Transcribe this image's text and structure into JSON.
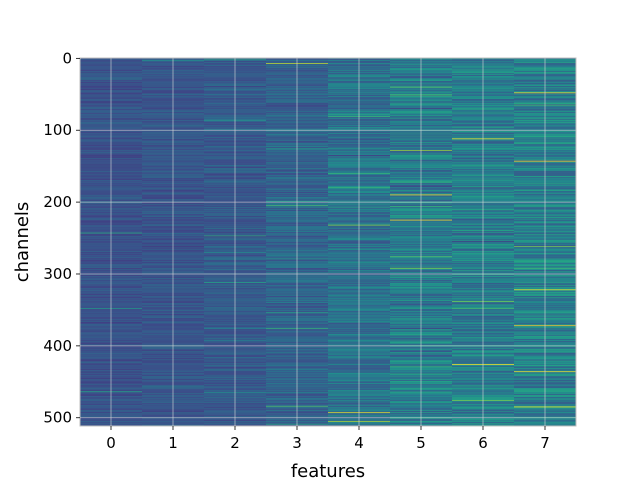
{
  "chart_data": {
    "type": "heatmap",
    "xlabel": "features",
    "ylabel": "channels",
    "x_categories": [
      "0",
      "1",
      "2",
      "3",
      "4",
      "5",
      "6",
      "7"
    ],
    "y_ticks": [
      0,
      100,
      200,
      300,
      400,
      500
    ],
    "n_rows": 512,
    "n_cols": 8,
    "colormap": "viridis",
    "grid": true,
    "grid_color": "#d8d8d8",
    "background_color": "#3b4f8a",
    "column_intensity": [
      0.06,
      0.07,
      0.09,
      0.13,
      0.18,
      0.22,
      0.23,
      0.24
    ],
    "bright_rows": [
      {
        "col": 3,
        "row": 7,
        "value": 0.72
      },
      {
        "col": 3,
        "row": 205,
        "value": 0.5
      },
      {
        "col": 4,
        "row": 232,
        "value": 0.62
      },
      {
        "col": 4,
        "row": 493,
        "value": 0.78
      },
      {
        "col": 4,
        "row": 505,
        "value": 0.7
      },
      {
        "col": 5,
        "row": 40,
        "value": 0.55
      },
      {
        "col": 5,
        "row": 128,
        "value": 0.65
      },
      {
        "col": 5,
        "row": 190,
        "value": 0.98
      },
      {
        "col": 5,
        "row": 225,
        "value": 0.8
      },
      {
        "col": 5,
        "row": 292,
        "value": 0.62
      },
      {
        "col": 6,
        "row": 112,
        "value": 0.95
      },
      {
        "col": 6,
        "row": 338,
        "value": 0.6
      },
      {
        "col": 6,
        "row": 426,
        "value": 0.9
      },
      {
        "col": 6,
        "row": 476,
        "value": 0.6
      },
      {
        "col": 7,
        "row": 48,
        "value": 0.95
      },
      {
        "col": 7,
        "row": 143,
        "value": 0.92
      },
      {
        "col": 7,
        "row": 262,
        "value": 0.6
      },
      {
        "col": 7,
        "row": 322,
        "value": 0.85
      },
      {
        "col": 7,
        "row": 372,
        "value": 0.95
      },
      {
        "col": 7,
        "row": 436,
        "value": 0.8
      },
      {
        "col": 7,
        "row": 485,
        "value": 0.9
      }
    ],
    "dark_rows": [
      {
        "col": 4,
        "row": 135,
        "value": 0.0
      },
      {
        "col": 5,
        "row": 70,
        "value": 0.0
      },
      {
        "col": 5,
        "row": 108,
        "value": 0.0
      },
      {
        "col": 5,
        "row": 178,
        "value": 0.0
      },
      {
        "col": 5,
        "row": 376,
        "value": 0.0
      },
      {
        "col": 6,
        "row": 100,
        "value": 0.0
      },
      {
        "col": 6,
        "row": 180,
        "value": 0.0
      },
      {
        "col": 6,
        "row": 255,
        "value": 0.0
      }
    ]
  }
}
